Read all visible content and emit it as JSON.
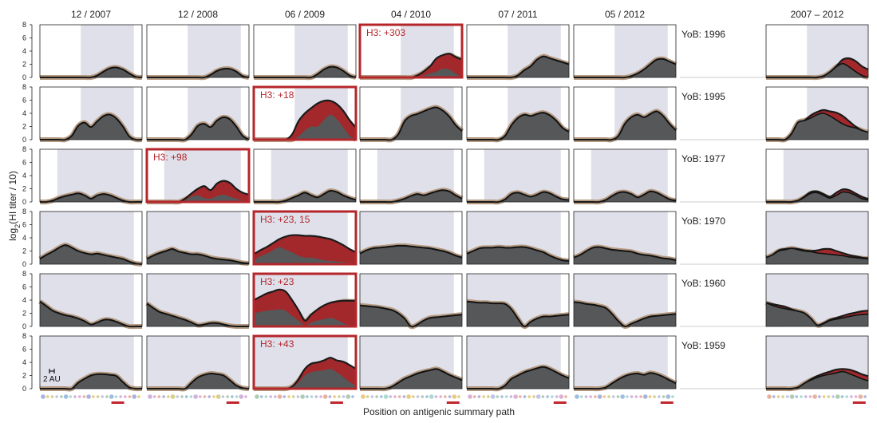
{
  "chart_data": {
    "type": "area",
    "xlabel": "Position on antigenic summary path",
    "ylabel_main": "log",
    "ylabel_sub": "2",
    "ylabel_rest": "(HI titer / 10)",
    "yticks": [
      "0",
      "2",
      "4",
      "6",
      "8"
    ],
    "ylim": [
      0,
      8
    ],
    "scale_label": "2 AU",
    "columns": [
      "12 / 2007",
      "12 / 2008",
      "06 / 2009",
      "04 / 2010",
      "07 / 2011",
      "05 / 2012",
      "",
      "2007 – 2012"
    ],
    "rows": [
      {
        "yob": "YoB: 1996",
        "boxed_col": 3,
        "boxed_label": "H3: +303",
        "shade_start": [
          0.4,
          0.4,
          0.4,
          0.4,
          0.4,
          0.4
        ]
      },
      {
        "yob": "YoB: 1995",
        "boxed_col": 2,
        "boxed_label": "H3: +18",
        "shade_start": [
          0.4,
          0.4,
          0.4,
          0.4,
          0.4,
          0.4
        ]
      },
      {
        "yob": "YoB: 1977",
        "boxed_col": 1,
        "boxed_label": "H3: +98",
        "shade_start": [
          0.17,
          0.17,
          0.17,
          0.17,
          0.17,
          0.17
        ]
      },
      {
        "yob": "YoB: 1970",
        "boxed_col": 2,
        "boxed_label": "H3: +23, 15",
        "shade_start": [
          0.0,
          0.0,
          0.0,
          0.0,
          0.0,
          0.0
        ]
      },
      {
        "yob": "YoB: 1960",
        "boxed_col": 2,
        "boxed_label": "H3: +23",
        "shade_start": [
          0.0,
          0.0,
          0.0,
          0.0,
          0.0,
          0.0
        ]
      },
      {
        "yob": "YoB: 1959",
        "boxed_col": 2,
        "boxed_label": "H3: +43",
        "shade_start": [
          0.0,
          0.0,
          0.0,
          0.0,
          0.0,
          0.0
        ]
      }
    ],
    "curves": [
      [
        [
          0,
          0,
          0,
          0,
          0,
          0,
          0,
          0,
          0,
          0.3,
          0.9,
          1.4,
          1.5,
          1.2,
          0.6,
          0.1,
          0
        ],
        [
          0,
          0,
          0,
          0,
          0,
          0,
          0,
          0,
          0,
          0,
          0.4,
          1.0,
          1.3,
          1.3,
          0.9,
          0.2,
          0
        ],
        [
          0,
          0,
          0,
          0,
          0,
          0,
          0,
          0,
          0,
          0,
          0.5,
          1.2,
          1.6,
          1.5,
          1.0,
          0.3,
          0
        ],
        [
          0,
          0,
          0,
          0,
          0,
          0,
          0,
          0,
          0,
          0.3,
          0.8,
          1.5,
          1.0,
          2.5,
          3.4,
          3.0,
          2.6
        ],
        [
          0,
          0,
          0,
          0,
          0,
          0,
          0,
          0,
          0.3,
          1.1,
          1.7,
          2.7,
          3.2,
          2.9,
          2.6,
          2.3,
          2.0
        ],
        [
          0,
          0,
          0,
          0,
          0,
          0,
          0,
          0,
          0,
          0.2,
          0.6,
          1.2,
          2.0,
          2.7,
          2.8,
          2.4,
          2.0
        ],
        null,
        [
          0,
          0,
          0,
          0,
          0,
          0,
          0,
          0,
          0,
          0.2,
          0.8,
          1.6,
          2.1,
          1.6,
          0.9,
          0.3,
          0
        ]
      ],
      [
        [
          0,
          0,
          0,
          0,
          0,
          0.6,
          2.1,
          2.6,
          1.9,
          2.8,
          3.6,
          3.8,
          3.2,
          2.0,
          0.5,
          0,
          0
        ],
        [
          0,
          0,
          0,
          0,
          0,
          0,
          0,
          0.8,
          2.1,
          2.4,
          1.9,
          2.9,
          3.4,
          3.1,
          2.0,
          0.6,
          0
        ],
        [
          0,
          0,
          0,
          0,
          0,
          0,
          0,
          0.5,
          0.9,
          1.3,
          0.9,
          2.1,
          3.0,
          2.6,
          1.6,
          0.6,
          0
        ],
        [
          0,
          0,
          0,
          0,
          0,
          0,
          0.8,
          2.8,
          3.6,
          3.9,
          4.3,
          4.7,
          4.9,
          4.4,
          3.5,
          2.2,
          1.3
        ],
        [
          0,
          0,
          0,
          0,
          0,
          0,
          0.6,
          2.2,
          3.3,
          3.8,
          3.6,
          3.9,
          4.1,
          3.7,
          2.9,
          1.8,
          1.2
        ],
        [
          0,
          0,
          0,
          0,
          0,
          0,
          0,
          0.6,
          2.4,
          3.4,
          3.8,
          3.4,
          3.9,
          4.3,
          3.6,
          2.4,
          1.4
        ],
        null,
        [
          0,
          0,
          0,
          0,
          0.9,
          2.6,
          2.9,
          3.3,
          3.8,
          4.0,
          3.6,
          3.0,
          2.4,
          2.0,
          1.8,
          1.4,
          1.1
        ]
      ],
      [
        [
          0,
          0,
          0.2,
          0.6,
          0.9,
          1.1,
          1.3,
          1.0,
          0.5,
          1.0,
          1.2,
          1.0,
          0.6,
          0.2,
          0,
          0,
          0
        ],
        [
          0,
          0,
          0,
          0,
          0,
          0,
          0.4,
          0.9,
          1.2,
          0.8,
          1.0,
          1.4,
          1.4,
          1.0,
          0.7,
          0.4,
          0.3
        ],
        [
          0,
          0,
          0,
          0,
          0,
          0.2,
          0.6,
          1.0,
          1.4,
          1.0,
          0.7,
          1.2,
          1.7,
          1.5,
          1.0,
          0.6,
          0.3
        ],
        [
          0,
          0,
          0,
          0,
          0,
          0,
          0.2,
          0.5,
          0.9,
          1.2,
          1.0,
          1.3,
          1.6,
          1.8,
          1.6,
          1.0,
          0.5
        ],
        [
          0,
          0,
          0,
          0,
          0,
          0,
          0.4,
          1.2,
          1.4,
          1.1,
          0.8,
          1.1,
          1.5,
          1.3,
          0.8,
          0.4,
          0.3
        ],
        [
          0,
          0,
          0,
          0,
          0,
          0.3,
          0.9,
          1.4,
          1.5,
          1.2,
          0.7,
          1.1,
          1.6,
          1.4,
          0.9,
          0.4,
          0.2
        ],
        null,
        [
          0,
          0,
          0,
          0,
          0,
          0.2,
          0.7,
          1.3,
          1.4,
          1.0,
          0.6,
          1.0,
          1.5,
          1.4,
          1.0,
          0.5,
          0.3
        ]
      ],
      [
        [
          0.8,
          1.4,
          1.9,
          2.5,
          2.9,
          2.5,
          2.0,
          1.7,
          1.5,
          1.6,
          1.4,
          1.2,
          1.0,
          0.8,
          0.4,
          0.1,
          0
        ],
        [
          0.8,
          1.3,
          1.7,
          2.0,
          2.3,
          1.9,
          1.7,
          1.5,
          1.5,
          1.3,
          1.0,
          0.8,
          0.7,
          0.6,
          0.4,
          0.2,
          0.1
        ],
        [
          0.7,
          1.0,
          1.2,
          1.3,
          1.5,
          1.7,
          1.8,
          1.7,
          1.5,
          1.7,
          1.9,
          2.0,
          1.9,
          1.6,
          1.4,
          1.2,
          1.0
        ],
        [
          1.6,
          2.1,
          2.4,
          2.5,
          2.6,
          2.7,
          2.8,
          2.8,
          2.7,
          2.6,
          2.5,
          2.4,
          2.2,
          2.0,
          1.7,
          1.3,
          1.0
        ],
        [
          1.6,
          2.0,
          2.4,
          2.5,
          2.5,
          2.6,
          2.5,
          2.5,
          2.6,
          2.6,
          2.4,
          2.1,
          1.8,
          1.3,
          0.9,
          0.6,
          0.5
        ],
        [
          1.0,
          1.4,
          2.0,
          2.5,
          2.6,
          2.4,
          2.2,
          2.1,
          2.0,
          1.9,
          1.6,
          1.4,
          1.3,
          1.1,
          0.9,
          0.8,
          0.6
        ],
        null,
        [
          1.0,
          1.4,
          2.0,
          2.2,
          2.4,
          2.2,
          2.0,
          1.9,
          1.7,
          1.6,
          1.5,
          1.4,
          1.3,
          1.1,
          1.0,
          0.9,
          0.8
        ]
      ],
      [
        [
          3.8,
          3.1,
          2.4,
          2.0,
          1.7,
          1.5,
          1.2,
          0.8,
          0.3,
          0.6,
          1.0,
          1.0,
          0.7,
          0.3,
          0,
          0,
          0
        ],
        [
          3.5,
          2.8,
          2.2,
          1.9,
          1.6,
          1.3,
          1.0,
          0.6,
          0.2,
          0.3,
          0.5,
          0.5,
          0.3,
          0.1,
          0,
          0,
          0
        ],
        [
          2.6,
          2.9,
          3.1,
          3.3,
          3.6,
          3.8,
          3.1,
          2.0,
          0.8,
          1.6,
          2.3,
          2.9,
          3.3,
          3.6,
          3.8,
          3.8,
          3.8
        ],
        [
          3.2,
          3.1,
          3.0,
          2.9,
          2.7,
          2.5,
          2.0,
          1.2,
          0,
          0.3,
          0.9,
          1.3,
          1.4,
          1.5,
          1.6,
          1.7,
          1.8
        ],
        [
          3.8,
          3.7,
          3.6,
          3.6,
          3.5,
          3.5,
          3.4,
          2.6,
          1.2,
          0,
          0.7,
          1.2,
          1.5,
          1.5,
          1.6,
          1.7,
          1.8
        ],
        [
          3.7,
          3.6,
          3.4,
          3.3,
          3.1,
          2.8,
          1.9,
          0.8,
          0,
          0.4,
          0.8,
          1.2,
          1.5,
          1.6,
          1.7,
          1.8,
          1.9
        ],
        null,
        [
          3.6,
          3.2,
          2.9,
          2.7,
          2.5,
          2.3,
          2.0,
          1.2,
          0.2,
          0.4,
          0.9,
          1.1,
          1.3,
          1.5,
          1.7,
          1.8,
          1.9
        ]
      ],
      [
        [
          0,
          0,
          0,
          0,
          0,
          0,
          0.9,
          1.5,
          2.0,
          2.2,
          2.2,
          2.1,
          1.9,
          1.0,
          0.2,
          0,
          0
        ],
        [
          0,
          0,
          0,
          0,
          0,
          0,
          0,
          0.9,
          1.7,
          2.1,
          2.3,
          2.2,
          2.0,
          1.3,
          0.5,
          0.1,
          0
        ],
        [
          0,
          0,
          0,
          0,
          0,
          0,
          0.3,
          1.2,
          2.6,
          3.2,
          3.5,
          3.7,
          4.0,
          3.6,
          3.4,
          3.0,
          2.6
        ],
        [
          0,
          0,
          0,
          0,
          0,
          0.3,
          0.9,
          1.5,
          1.9,
          2.3,
          2.6,
          2.8,
          3.0,
          2.6,
          2.1,
          1.7,
          1.3
        ],
        [
          0,
          0,
          0,
          0,
          0,
          0,
          0.5,
          1.5,
          2.0,
          2.5,
          2.8,
          3.1,
          3.3,
          3.0,
          2.5,
          2.0,
          1.6
        ],
        [
          0,
          0,
          0,
          0,
          0,
          0.2,
          0.8,
          1.4,
          1.9,
          2.2,
          2.3,
          2.1,
          2.4,
          2.2,
          1.8,
          1.3,
          0.8
        ],
        null,
        [
          0,
          0,
          0,
          0,
          0,
          0.2,
          0.8,
          1.3,
          1.7,
          2.0,
          2.2,
          2.4,
          2.6,
          2.3,
          1.9,
          1.5,
          1.2
        ]
      ]
    ],
    "red_tops": [
      [
        null,
        null,
        null,
        [
          0,
          0,
          0,
          0,
          0,
          0,
          0,
          0,
          0,
          0.3,
          0.9,
          1.7,
          2.9,
          3.4,
          3.6,
          3.1,
          2.7
        ],
        null,
        null,
        null,
        [
          0,
          0,
          0,
          0,
          0,
          0,
          0,
          0,
          0,
          0.2,
          0.8,
          1.7,
          2.7,
          2.9,
          2.5,
          1.7,
          1.2
        ]
      ],
      [
        null,
        null,
        [
          0,
          0,
          0,
          0,
          0,
          0,
          0.8,
          2.8,
          4.0,
          4.8,
          5.5,
          5.9,
          5.9,
          5.4,
          4.4,
          3.0,
          1.8
        ],
        null,
        null,
        null,
        null,
        [
          0,
          0,
          0,
          0,
          0.9,
          2.6,
          2.9,
          3.7,
          4.2,
          4.5,
          4.3,
          4.1,
          3.6,
          2.8,
          2.0,
          1.4,
          1.1
        ]
      ],
      [
        null,
        [
          0,
          0,
          0,
          0,
          0,
          0,
          0.5,
          1.3,
          2.0,
          2.4,
          1.8,
          2.8,
          3.2,
          2.9,
          2.0,
          1.4,
          1.1
        ],
        null,
        null,
        null,
        null,
        null,
        [
          0,
          0,
          0,
          0,
          0,
          0.2,
          0.8,
          1.5,
          1.6,
          1.2,
          0.8,
          1.4,
          1.9,
          1.8,
          1.3,
          0.8,
          0.4
        ]
      ],
      [
        null,
        null,
        [
          1.5,
          2.1,
          2.6,
          3.2,
          3.8,
          4.2,
          4.4,
          4.4,
          4.3,
          4.3,
          4.2,
          4.0,
          3.8,
          3.4,
          2.9,
          2.3,
          1.8
        ],
        null,
        null,
        null,
        null,
        [
          1.0,
          1.4,
          2.1,
          2.3,
          2.4,
          2.3,
          2.1,
          2.0,
          2.1,
          2.3,
          2.3,
          2.0,
          1.7,
          1.4,
          1.2,
          1.0,
          0.9
        ]
      ],
      [
        null,
        null,
        [
          4.0,
          4.5,
          5.0,
          5.3,
          5.6,
          5.3,
          4.0,
          2.5,
          0.9,
          1.8,
          2.6,
          3.2,
          3.6,
          3.8,
          3.9,
          3.9,
          3.9
        ],
        null,
        null,
        null,
        null,
        [
          3.6,
          3.4,
          3.2,
          3.0,
          2.6,
          2.3,
          2.0,
          1.2,
          0.2,
          0.5,
          1.0,
          1.3,
          1.6,
          1.9,
          2.1,
          2.3,
          2.4
        ]
      ],
      [
        null,
        null,
        [
          0,
          0,
          0,
          0,
          0,
          0,
          0.3,
          1.4,
          3.0,
          3.8,
          4.0,
          4.3,
          4.7,
          4.3,
          4.1,
          3.6,
          3.0
        ],
        null,
        null,
        null,
        null,
        [
          0,
          0,
          0,
          0,
          0,
          0.2,
          0.8,
          1.4,
          1.9,
          2.3,
          2.6,
          2.9,
          3.0,
          2.9,
          2.6,
          2.2,
          1.9
        ]
      ]
    ],
    "red_bottoms": [
      [
        null,
        null,
        null,
        [
          0,
          0,
          0,
          0,
          0,
          0,
          0,
          0,
          0,
          0,
          0.3,
          0.6,
          0.9,
          1.3,
          1.2,
          0.6,
          0
        ],
        null,
        null,
        null,
        null,
        null
      ],
      [
        null,
        null,
        [
          0,
          0,
          0,
          0,
          0,
          0,
          0,
          0.5,
          1.4,
          2.0,
          2.0,
          3.0,
          3.8,
          3.1,
          1.9,
          0.6,
          0
        ],
        null,
        null,
        null,
        null,
        null
      ],
      [
        null,
        [
          0,
          0,
          0,
          0,
          0,
          0,
          0.3,
          0.8,
          1.0,
          0.6,
          0.5,
          0.9,
          1.1,
          0.8,
          0.5,
          0.2,
          0
        ],
        null,
        null,
        null,
        null,
        null,
        null
      ],
      [
        null,
        null,
        [
          0.6,
          1.2,
          1.6,
          2.1,
          2.6,
          2.2,
          1.8,
          1.3,
          1.0,
          1.0,
          0.8,
          0.6,
          0.5,
          0.4,
          0.3,
          0.2,
          0.1
        ],
        null,
        null,
        null,
        null,
        null
      ],
      [
        null,
        null,
        [
          2.0,
          2.2,
          2.4,
          2.5,
          2.6,
          2.4,
          1.6,
          0.9,
          0.2,
          0.6,
          0.9,
          1.1,
          1.3,
          1.0,
          0.5,
          0.2,
          0.1
        ],
        null,
        null,
        null,
        null,
        null
      ],
      [
        null,
        null,
        [
          0,
          0,
          0,
          0,
          0,
          0,
          0.2,
          0.9,
          2.0,
          2.5,
          2.7,
          2.8,
          3.0,
          2.5,
          1.8,
          1.0,
          0.5
        ],
        null,
        null,
        null,
        null,
        null
      ]
    ]
  }
}
